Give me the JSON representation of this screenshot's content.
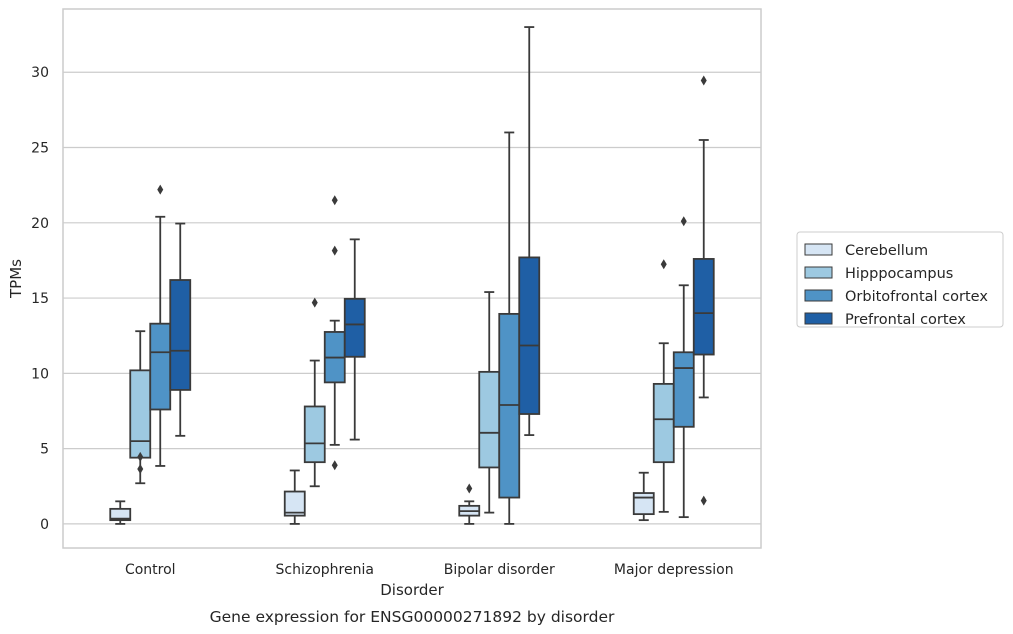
{
  "chart_data": {
    "type": "box",
    "title": "",
    "caption": "Gene expression for ENSG00000271892 by disorder",
    "xlabel": "Disorder",
    "ylabel": "TPMs",
    "ylim": [
      -1.6,
      34.2
    ],
    "yticks": [
      0,
      5,
      10,
      15,
      20,
      25,
      30
    ],
    "grid": "horizontal",
    "legend_position": "right",
    "categories": [
      "Control",
      "Schizophrenia",
      "Bipolar disorder",
      "Major depression"
    ],
    "series": [
      {
        "name": "Cerebellum",
        "color": "#d6e5f4",
        "boxes": [
          {
            "whisker_low": 0.0,
            "q1": 0.25,
            "median": 0.35,
            "q3": 1.0,
            "whisker_high": 1.5,
            "outliers": []
          },
          {
            "whisker_low": 0.0,
            "q1": 0.55,
            "median": 0.75,
            "q3": 2.15,
            "whisker_high": 3.55,
            "outliers": []
          },
          {
            "whisker_low": 0.0,
            "q1": 0.55,
            "median": 0.85,
            "q3": 1.2,
            "whisker_high": 1.5,
            "outliers": [
              2.35
            ]
          },
          {
            "whisker_low": 0.25,
            "q1": 0.65,
            "median": 1.75,
            "q3": 2.05,
            "whisker_high": 3.4,
            "outliers": []
          }
        ]
      },
      {
        "name": "Hipppocampus",
        "color": "#9dc9e1",
        "boxes": [
          {
            "whisker_low": 2.7,
            "q1": 4.4,
            "median": 5.5,
            "q3": 10.2,
            "whisker_high": 12.8,
            "outliers": [
              3.65,
              4.45
            ]
          },
          {
            "whisker_low": 2.5,
            "q1": 4.1,
            "median": 5.35,
            "q3": 7.8,
            "whisker_high": 10.85,
            "outliers": [
              14.7
            ]
          },
          {
            "whisker_low": 0.75,
            "q1": 3.75,
            "median": 6.05,
            "q3": 10.1,
            "whisker_high": 15.4,
            "outliers": []
          },
          {
            "whisker_low": 0.8,
            "q1": 4.1,
            "median": 6.95,
            "q3": 9.3,
            "whisker_high": 12.0,
            "outliers": [
              17.25
            ]
          }
        ]
      },
      {
        "name": "Orbitofrontal cortex",
        "color": "#4f93c6",
        "boxes": [
          {
            "whisker_low": 3.85,
            "q1": 7.6,
            "median": 11.4,
            "q3": 13.3,
            "whisker_high": 20.4,
            "outliers": [
              22.2
            ]
          },
          {
            "whisker_low": 5.25,
            "q1": 9.4,
            "median": 11.05,
            "q3": 12.75,
            "whisker_high": 13.5,
            "outliers": [
              3.9,
              18.15,
              21.5
            ]
          },
          {
            "whisker_low": 0.0,
            "q1": 1.75,
            "median": 7.9,
            "q3": 13.95,
            "whisker_high": 26.0,
            "outliers": []
          },
          {
            "whisker_low": 0.45,
            "q1": 6.45,
            "median": 10.35,
            "q3": 11.4,
            "whisker_high": 15.85,
            "outliers": [
              20.1
            ]
          }
        ]
      },
      {
        "name": "Prefrontal cortex",
        "color": "#1f5fa5",
        "boxes": [
          {
            "whisker_low": 5.85,
            "q1": 8.9,
            "median": 11.5,
            "q3": 16.2,
            "whisker_high": 19.95,
            "outliers": []
          },
          {
            "whisker_low": 5.6,
            "q1": 11.1,
            "median": 13.25,
            "q3": 14.95,
            "whisker_high": 18.9,
            "outliers": []
          },
          {
            "whisker_low": 5.9,
            "q1": 7.3,
            "median": 11.85,
            "q3": 17.7,
            "whisker_high": 33.0,
            "outliers": []
          },
          {
            "whisker_low": 8.4,
            "q1": 11.25,
            "median": 14.0,
            "q3": 17.6,
            "whisker_high": 25.5,
            "outliers": [
              1.55,
              29.45
            ]
          }
        ]
      }
    ]
  }
}
